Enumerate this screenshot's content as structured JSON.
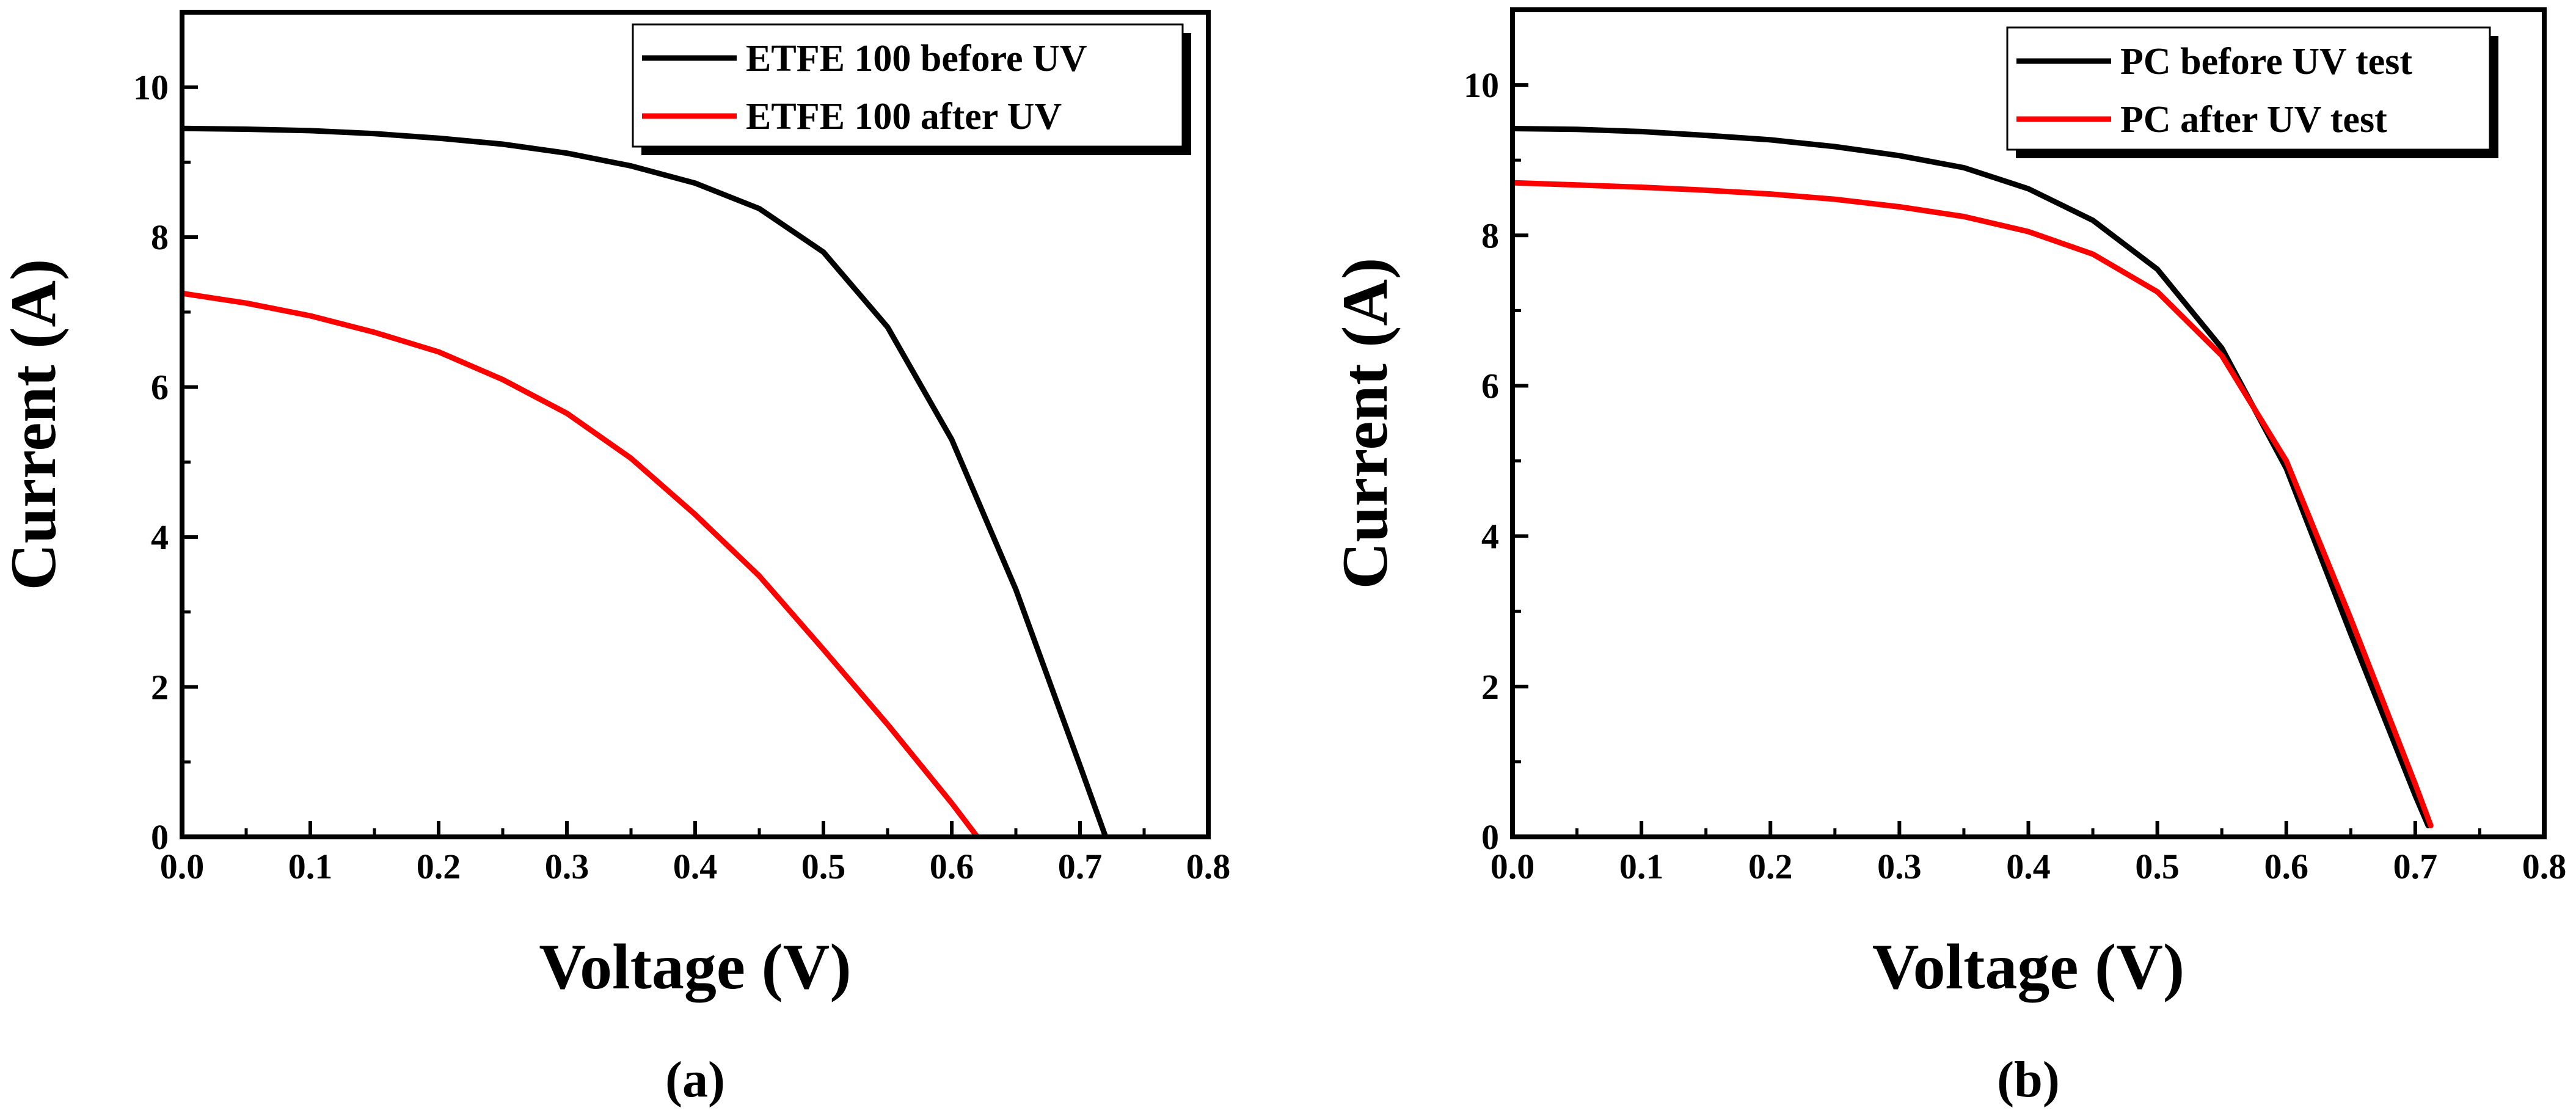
{
  "chart_data": [
    {
      "type": "line",
      "panel_label": "(a)",
      "xlabel": "Voltage (V)",
      "ylabel": "Current (A)",
      "xlim": [
        0,
        0.8
      ],
      "ylim": [
        0,
        11
      ],
      "xticks": [
        0,
        0.1,
        0.2,
        0.3,
        0.4,
        0.5,
        0.6,
        0.7,
        0.8
      ],
      "xtick_labels": [
        "0.0",
        "0.1",
        "0.2",
        "0.3",
        "0.4",
        "0.5",
        "0.6",
        "0.7",
        "0.8"
      ],
      "yticks": [
        0,
        2,
        4,
        6,
        8,
        10
      ],
      "ytick_labels": [
        "0",
        "2",
        "4",
        "6",
        "8",
        "10"
      ],
      "legend_position": "top-right",
      "series": [
        {
          "name": "ETFE 100 before UV",
          "color": "#000000",
          "x": [
            0,
            0.05,
            0.1,
            0.15,
            0.2,
            0.25,
            0.3,
            0.35,
            0.4,
            0.45,
            0.5,
            0.55,
            0.6,
            0.65,
            0.7,
            0.72
          ],
          "y": [
            9.45,
            9.44,
            9.42,
            9.38,
            9.32,
            9.24,
            9.12,
            8.95,
            8.72,
            8.38,
            7.8,
            6.8,
            5.3,
            3.3,
            0.95,
            0.0
          ]
        },
        {
          "name": "ETFE 100 after UV",
          "color": "#ff0000",
          "x": [
            0,
            0.05,
            0.1,
            0.15,
            0.2,
            0.25,
            0.3,
            0.35,
            0.4,
            0.45,
            0.5,
            0.55,
            0.6,
            0.62
          ],
          "y": [
            7.25,
            7.12,
            6.95,
            6.73,
            6.47,
            6.1,
            5.65,
            5.05,
            4.3,
            3.48,
            2.5,
            1.5,
            0.45,
            0.0
          ]
        }
      ]
    },
    {
      "type": "line",
      "panel_label": "(b)",
      "xlabel": "Voltage (V)",
      "ylabel": "Current (A)",
      "xlim": [
        0,
        0.8
      ],
      "ylim": [
        0,
        11
      ],
      "xticks": [
        0,
        0.1,
        0.2,
        0.3,
        0.4,
        0.5,
        0.6,
        0.7,
        0.8
      ],
      "xtick_labels": [
        "0.0",
        "0.1",
        "0.2",
        "0.3",
        "0.4",
        "0.5",
        "0.6",
        "0.7",
        "0.8"
      ],
      "yticks": [
        0,
        2,
        4,
        6,
        8,
        10
      ],
      "ytick_labels": [
        "0",
        "2",
        "4",
        "6",
        "8",
        "10"
      ],
      "legend_position": "top-right",
      "series": [
        {
          "name": "PC before UV test",
          "color": "#000000",
          "x": [
            0,
            0.05,
            0.1,
            0.15,
            0.2,
            0.25,
            0.3,
            0.35,
            0.4,
            0.45,
            0.5,
            0.55,
            0.6,
            0.65,
            0.7,
            0.71
          ],
          "y": [
            9.42,
            9.41,
            9.38,
            9.33,
            9.27,
            9.18,
            9.06,
            8.9,
            8.62,
            8.2,
            7.55,
            6.5,
            4.9,
            2.7,
            0.55,
            0.15
          ]
        },
        {
          "name": "PC after UV test",
          "color": "#ff0000",
          "x": [
            0,
            0.05,
            0.1,
            0.15,
            0.2,
            0.25,
            0.3,
            0.35,
            0.4,
            0.45,
            0.5,
            0.55,
            0.6,
            0.65,
            0.7,
            0.712
          ],
          "y": [
            8.7,
            8.67,
            8.64,
            8.6,
            8.55,
            8.48,
            8.38,
            8.25,
            8.05,
            7.75,
            7.25,
            6.4,
            5.0,
            2.9,
            0.7,
            0.15
          ]
        }
      ]
    }
  ]
}
